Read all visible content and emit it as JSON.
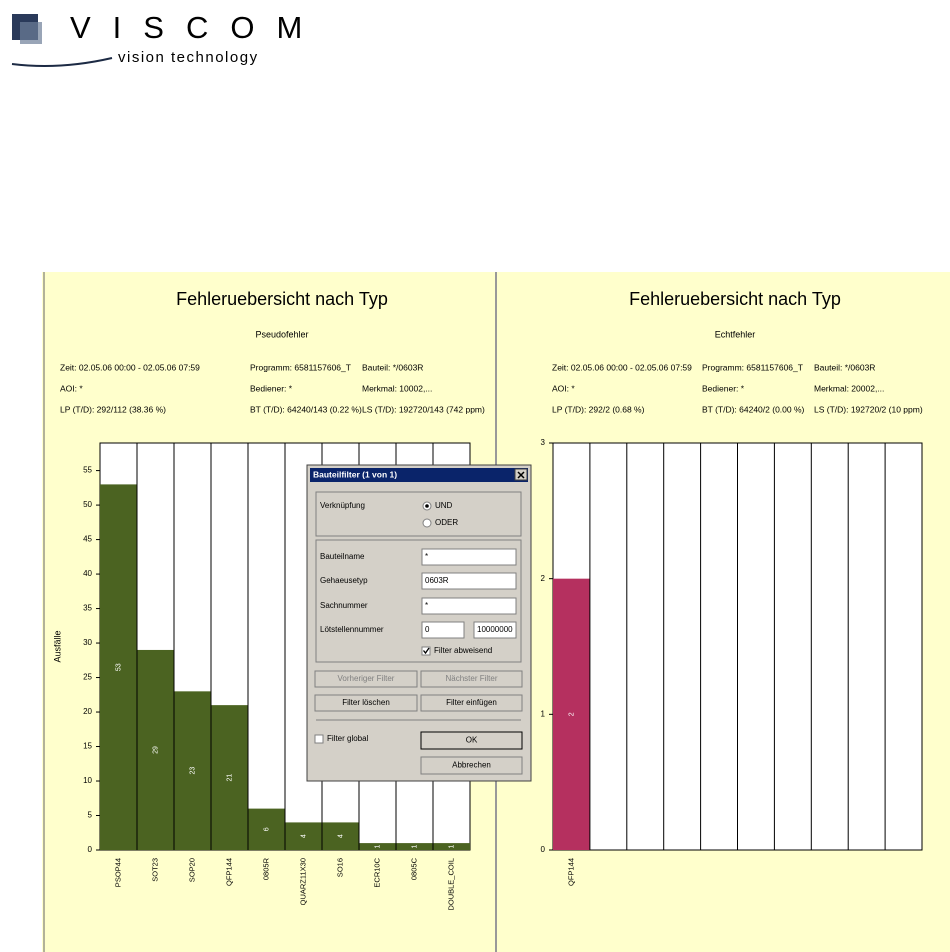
{
  "logo": {
    "name": "VISCOM",
    "tagline": "vision technology"
  },
  "chart_data": [
    {
      "type": "bar",
      "title": "Fehleruebersicht nach Typ",
      "subtitle": "Pseudofehler",
      "info": [
        "Zeit: 02.05.06 00:00 - 02.05.06 07:59",
        "Programm: 6581157606_T",
        "Bauteil: */0603R",
        "AOI: *",
        "Bediener: *",
        "Merkmal: 10002,...",
        "LP (T/D): 292/112 (38.36 %)",
        "BT (T/D): 64240/143 (0.22 %)",
        "LS (T/D): 192720/143 (742 ppm)"
      ],
      "y_label": "Ausfälle",
      "categories": [
        "PSOP44",
        "SOT23",
        "SOP20",
        "QFP144",
        "0805R",
        "QUARZ11X30",
        "SO16",
        "ECR10C",
        "0805C",
        "DOUBLE_COIL"
      ],
      "values": [
        53,
        29,
        23,
        21,
        6,
        4,
        4,
        1,
        1,
        1
      ],
      "color": "#4b6321",
      "ylim": [
        0,
        59
      ],
      "yticks": [
        0,
        5,
        10,
        15,
        20,
        25,
        30,
        35,
        40,
        45,
        50,
        55
      ]
    },
    {
      "type": "bar",
      "title": "Fehleruebersicht nach Typ",
      "subtitle": "Echtfehler",
      "info": [
        "Zeit: 02.05.06 00:00 - 02.05.06 07:59",
        "Programm: 6581157606_T",
        "Bauteil: */0603R",
        "AOI: *",
        "Bediener: *",
        "Merkmal: 20002,...",
        "LP (T/D): 292/2 (0.68 %)",
        "BT (T/D): 64240/2 (0.00 %)",
        "LS (T/D): 192720/2 (10 ppm)"
      ],
      "categories": [
        "QFP144",
        null,
        null,
        null,
        null,
        null,
        null,
        null,
        null,
        null
      ],
      "values": [
        2,
        null,
        null,
        null,
        null,
        null,
        null,
        null,
        null,
        null
      ],
      "color": "#b5305f",
      "ylim": [
        0,
        3
      ],
      "yticks": [
        0,
        1,
        2,
        3
      ]
    }
  ],
  "dialog": {
    "title": "Bauteilfilter (1 von 1)",
    "link_label": "Verknüpfung",
    "and": "UND",
    "or": "ODER",
    "fields": [
      [
        "Bauteilname",
        "*"
      ],
      [
        "Gehaeusetyp",
        "0603R"
      ],
      [
        "Sachnummer",
        "*"
      ],
      [
        "Lötstellennummer",
        "0",
        "10000000"
      ]
    ],
    "reject": "Filter abweisend",
    "prev": "Vorheriger Filter",
    "next": "Nächster Filter",
    "delete": "Filter löschen",
    "insert": "Filter einfügen",
    "global": "Filter global",
    "ok": "OK",
    "cancel": "Abbrechen"
  }
}
